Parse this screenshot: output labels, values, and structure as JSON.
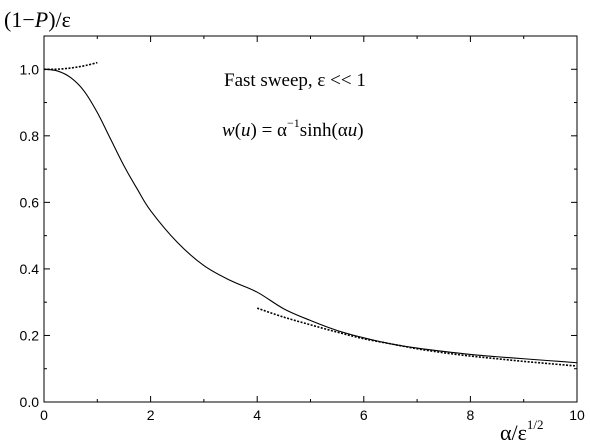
{
  "chart_data": {
    "type": "line",
    "ylabel": {
      "pre": "(1−",
      "var": "P",
      "post": ")/ε"
    },
    "xlabel": {
      "base": "α/ε",
      "sup": "1/2"
    },
    "xlim": [
      0,
      10
    ],
    "ylim": [
      0.0,
      1.1
    ],
    "x_ticks": [
      0,
      2,
      4,
      6,
      8,
      10
    ],
    "y_ticks": [
      0.0,
      0.2,
      0.4,
      0.6,
      0.8,
      1.0
    ],
    "x_tick_labels": [
      "0",
      "2",
      "4",
      "6",
      "8",
      "10"
    ],
    "y_tick_labels": [
      "0.0",
      "0.2",
      "0.4",
      "0.6",
      "0.8",
      "1.0"
    ],
    "annotations": {
      "line1": "Fast sweep, ε << 1",
      "line2_w": "w",
      "line2_u": "u",
      "line2_eq": " = α",
      "line2_sup": "−1",
      "line2_sinh": "sinh(α",
      "line2_close": ")"
    },
    "series": [
      {
        "style": "solid",
        "x": [
          0,
          0.25,
          0.5,
          0.75,
          1.0,
          1.25,
          1.5,
          1.75,
          2.0,
          2.5,
          3.0,
          3.5,
          4.0,
          4.5,
          5.0,
          5.5,
          6.0,
          6.5,
          7.0,
          7.5,
          8.0,
          8.5,
          9.0,
          9.5,
          10.0
        ],
        "y": [
          1.0,
          0.995,
          0.975,
          0.935,
          0.87,
          0.79,
          0.71,
          0.64,
          0.575,
          0.48,
          0.41,
          0.365,
          0.33,
          0.28,
          0.245,
          0.215,
          0.193,
          0.175,
          0.162,
          0.152,
          0.143,
          0.136,
          0.13,
          0.124,
          0.118
        ]
      },
      {
        "style": "dotted",
        "x": [
          0,
          0.2,
          0.4,
          0.6,
          0.8,
          1.0
        ],
        "y": [
          1.0,
          1.0,
          1.002,
          1.006,
          1.012,
          1.02
        ]
      },
      {
        "style": "dotted",
        "x": [
          4.0,
          4.5,
          5.0,
          5.5,
          6.0,
          6.5,
          7.0,
          7.5,
          8.0,
          8.5,
          9.0,
          9.5,
          10.0
        ],
        "y": [
          0.282,
          0.255,
          0.232,
          0.21,
          0.19,
          0.175,
          0.16,
          0.148,
          0.138,
          0.13,
          0.122,
          0.115,
          0.108
        ]
      }
    ]
  }
}
